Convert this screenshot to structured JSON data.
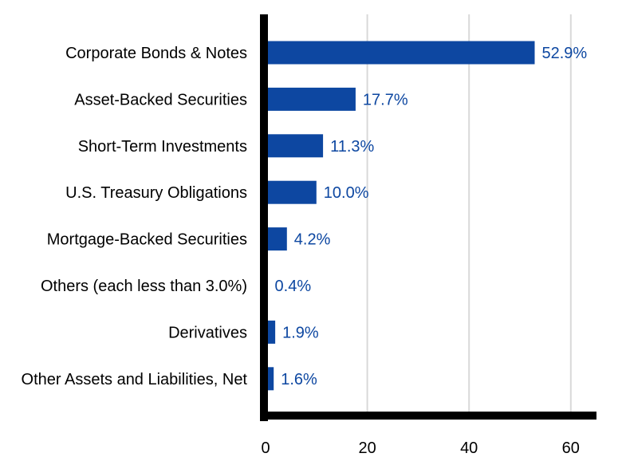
{
  "chart_data": {
    "type": "bar",
    "orientation": "horizontal",
    "categories": [
      "Corporate Bonds & Notes",
      "Asset-Backed Securities",
      "Short-Term Investments",
      "U.S. Treasury Obligations",
      "Mortgage-Backed Securities",
      "Others (each less than 3.0%)",
      "Derivatives",
      "Other Assets and Liabilities, Net"
    ],
    "values": [
      52.9,
      17.7,
      11.3,
      10.0,
      4.2,
      0.4,
      1.9,
      1.6
    ],
    "value_labels": [
      "52.9%",
      "17.7%",
      "11.3%",
      "10.0%",
      "4.2%",
      "0.4%",
      "1.9%",
      "1.6%"
    ],
    "xlim": [
      0,
      65
    ],
    "xticks": [
      0,
      20,
      40,
      60
    ],
    "xtick_labels": [
      "0",
      "20",
      "40",
      "60"
    ],
    "grid": "vertical",
    "colors": {
      "bar": "#0d47a1",
      "value_text": "#0d47a1",
      "grid": "#d9d9d9",
      "axis": "#000000"
    }
  }
}
